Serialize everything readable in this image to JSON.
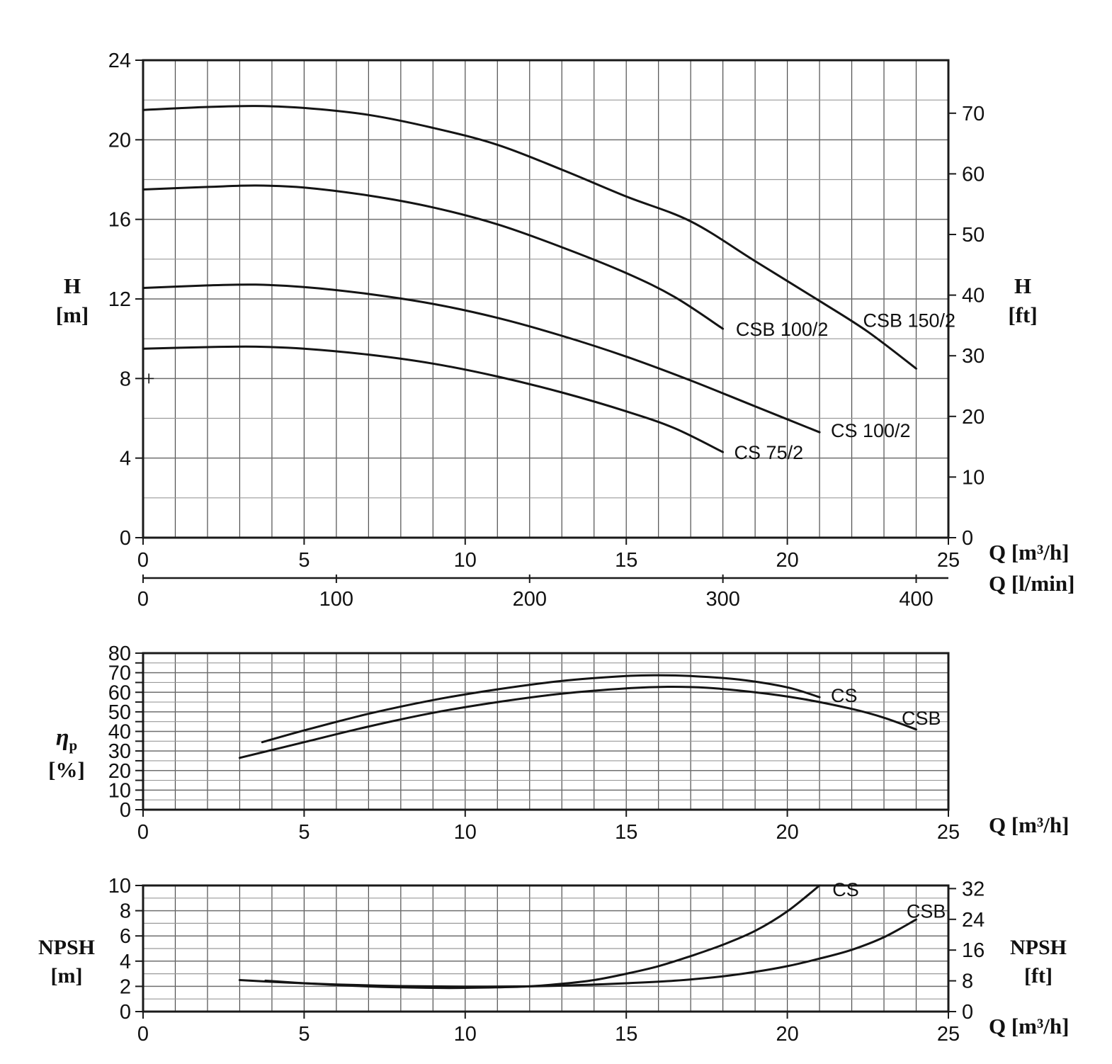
{
  "colors": {
    "curve": "#141414",
    "border": "#1a1a1a",
    "grid_minor": "#9a9a9a",
    "grid_major": "#6f6f6f",
    "grid_vertical": "#4d4d4d",
    "text": "#111111",
    "background": "#ffffff"
  },
  "labels": {
    "h_m": [
      "H",
      "[m]"
    ],
    "h_ft": [
      "H",
      "[ft]"
    ],
    "eta": [
      "η",
      "p",
      "[%]"
    ],
    "npsh_m": [
      "NPSH",
      "[m]"
    ],
    "npsh_ft": [
      "NPSH",
      "[ft]"
    ],
    "q_m3h": "Q [m³/h]",
    "q_lmin": "Q [l/min]"
  },
  "chart_data": [
    {
      "id": "head",
      "type": "line",
      "title": "Head curves H vs Q",
      "xlabel": "Q [m³/h]",
      "ylabel": "H [m]",
      "x": {
        "min": 0,
        "max": 25,
        "grid_step": 1,
        "ticks": [
          0,
          5,
          10,
          15,
          20,
          25
        ]
      },
      "y": {
        "min": 0,
        "max": 24,
        "grid_step": 2,
        "major_step": 4,
        "tick_step": 4,
        "ticks": [
          0,
          4,
          8,
          12,
          16,
          20,
          24
        ]
      },
      "right_axis": {
        "label": "H [ft]",
        "ticks": [
          0,
          10,
          20,
          30,
          40,
          50,
          60,
          70
        ],
        "m_per_unit": 0.3048
      },
      "secondary_x": {
        "label": "Q [l/min]",
        "ticks": [
          0,
          100,
          200,
          300,
          400
        ],
        "m3h_per_unit": 0.06
      },
      "series": [
        {
          "name": "CSB 150/2",
          "label": "CSB 150/2",
          "label_at": [
            22.35,
            10.6
          ],
          "points": [
            [
              0,
              21.5
            ],
            [
              2,
              21.65
            ],
            [
              3.5,
              21.7
            ],
            [
              5,
              21.6
            ],
            [
              7,
              21.25
            ],
            [
              9,
              20.6
            ],
            [
              11,
              19.75
            ],
            [
              13,
              18.5
            ],
            [
              15,
              17.15
            ],
            [
              17,
              15.9
            ],
            [
              19,
              13.9
            ],
            [
              21,
              11.9
            ],
            [
              22.5,
              10.35
            ],
            [
              24,
              8.5
            ]
          ]
        },
        {
          "name": "CSB 100/2",
          "label": "CSB 100/2",
          "label_at": [
            18.4,
            10.15
          ],
          "points": [
            [
              0,
              17.5
            ],
            [
              2,
              17.63
            ],
            [
              3.5,
              17.7
            ],
            [
              5,
              17.6
            ],
            [
              7,
              17.2
            ],
            [
              9,
              16.6
            ],
            [
              11,
              15.75
            ],
            [
              13,
              14.6
            ],
            [
              15,
              13.3
            ],
            [
              16.5,
              12.1
            ],
            [
              18,
              10.5
            ]
          ]
        },
        {
          "name": "CS 100/2",
          "label": "CS 100/2",
          "label_at": [
            21.35,
            5.05
          ],
          "points": [
            [
              0,
              12.55
            ],
            [
              2,
              12.68
            ],
            [
              3.5,
              12.72
            ],
            [
              5,
              12.6
            ],
            [
              7,
              12.25
            ],
            [
              9,
              11.75
            ],
            [
              11,
              11.05
            ],
            [
              13,
              10.15
            ],
            [
              15,
              9.1
            ],
            [
              17,
              7.9
            ],
            [
              19,
              6.6
            ],
            [
              21,
              5.3
            ]
          ]
        },
        {
          "name": "CS 75/2",
          "label": "CS 75/2",
          "label_at": [
            18.35,
            3.95
          ],
          "points": [
            [
              0,
              9.5
            ],
            [
              2,
              9.58
            ],
            [
              3.5,
              9.6
            ],
            [
              5,
              9.5
            ],
            [
              7,
              9.2
            ],
            [
              9,
              8.75
            ],
            [
              11,
              8.1
            ],
            [
              13,
              7.3
            ],
            [
              15,
              6.35
            ],
            [
              16.5,
              5.5
            ],
            [
              18,
              4.3
            ]
          ]
        }
      ],
      "annotations": [
        {
          "type": "plus",
          "at": [
            0.18,
            8
          ]
        }
      ]
    },
    {
      "id": "efficiency",
      "type": "line",
      "title": "Pump efficiency vs Q",
      "xlabel": "Q [m³/h]",
      "ylabel": "ηp [%]",
      "x": {
        "min": 0,
        "max": 25,
        "grid_step": 1,
        "ticks": [
          0,
          5,
          10,
          15,
          20,
          25
        ]
      },
      "y": {
        "min": 0,
        "max": 80,
        "grid_step": 5,
        "major_step": 10,
        "tick_step": 5,
        "ticks": [
          0,
          10,
          20,
          30,
          40,
          50,
          60,
          70,
          80
        ]
      },
      "series": [
        {
          "name": "CS",
          "label": "CS",
          "label_at": [
            21.35,
            55
          ],
          "points": [
            [
              3.7,
              34.5
            ],
            [
              5,
              40.5
            ],
            [
              7,
              49
            ],
            [
              9,
              56
            ],
            [
              11,
              61.5
            ],
            [
              13,
              65.8
            ],
            [
              15,
              68.3
            ],
            [
              16,
              68.7
            ],
            [
              17,
              68.3
            ],
            [
              18.5,
              66.5
            ],
            [
              20,
              62.5
            ],
            [
              21,
              57.5
            ]
          ]
        },
        {
          "name": "CSB",
          "label": "CSB",
          "label_at": [
            23.55,
            43.5
          ],
          "points": [
            [
              3,
              26.5
            ],
            [
              5,
              34.5
            ],
            [
              7,
              42.5
            ],
            [
              9,
              49.5
            ],
            [
              11,
              55
            ],
            [
              13,
              59.3
            ],
            [
              15,
              62
            ],
            [
              16.3,
              62.8
            ],
            [
              17.5,
              62.3
            ],
            [
              19,
              60
            ],
            [
              20.5,
              56.5
            ],
            [
              22,
              51.5
            ],
            [
              23,
              47
            ],
            [
              24,
              41
            ]
          ]
        }
      ],
      "annotations": []
    },
    {
      "id": "npsh",
      "type": "line",
      "title": "NPSH vs Q",
      "xlabel": "Q [m³/h]",
      "ylabel": "NPSH [m]",
      "x": {
        "min": 0,
        "max": 25,
        "grid_step": 1,
        "ticks": [
          0,
          5,
          10,
          15,
          20,
          25
        ]
      },
      "y": {
        "min": 0,
        "max": 10,
        "grid_step": 1,
        "major_step": 2,
        "tick_step": 2,
        "ticks": [
          0,
          2,
          4,
          6,
          8,
          10
        ]
      },
      "right_axis": {
        "label": "NPSH [ft]",
        "ticks": [
          0,
          8,
          16,
          24,
          32
        ],
        "m_per_unit": 0.3048
      },
      "series": [
        {
          "name": "CS",
          "label": "CS",
          "label_at": [
            21.4,
            9.15
          ],
          "points": [
            [
              3.8,
              2.45
            ],
            [
              5,
              2.25
            ],
            [
              6.5,
              2.05
            ],
            [
              8,
              1.92
            ],
            [
              9.5,
              1.87
            ],
            [
              11,
              1.92
            ],
            [
              12,
              2.0
            ],
            [
              13,
              2.2
            ],
            [
              14,
              2.5
            ],
            [
              15,
              3.0
            ],
            [
              16,
              3.6
            ],
            [
              17,
              4.4
            ],
            [
              18,
              5.3
            ],
            [
              19,
              6.4
            ],
            [
              20,
              7.95
            ],
            [
              21,
              10.0
            ]
          ]
        },
        {
          "name": "CSB",
          "label": "CSB",
          "label_at": [
            23.7,
            7.45
          ],
          "points": [
            [
              3,
              2.5
            ],
            [
              4.5,
              2.3
            ],
            [
              6,
              2.15
            ],
            [
              8,
              2.02
            ],
            [
              10,
              1.98
            ],
            [
              12,
              2.0
            ],
            [
              13.5,
              2.1
            ],
            [
              15,
              2.25
            ],
            [
              16.5,
              2.45
            ],
            [
              18,
              2.8
            ],
            [
              19,
              3.15
            ],
            [
              20,
              3.6
            ],
            [
              21,
              4.2
            ],
            [
              22,
              4.9
            ],
            [
              23,
              5.9
            ],
            [
              24,
              7.3
            ]
          ]
        }
      ],
      "annotations": []
    }
  ]
}
